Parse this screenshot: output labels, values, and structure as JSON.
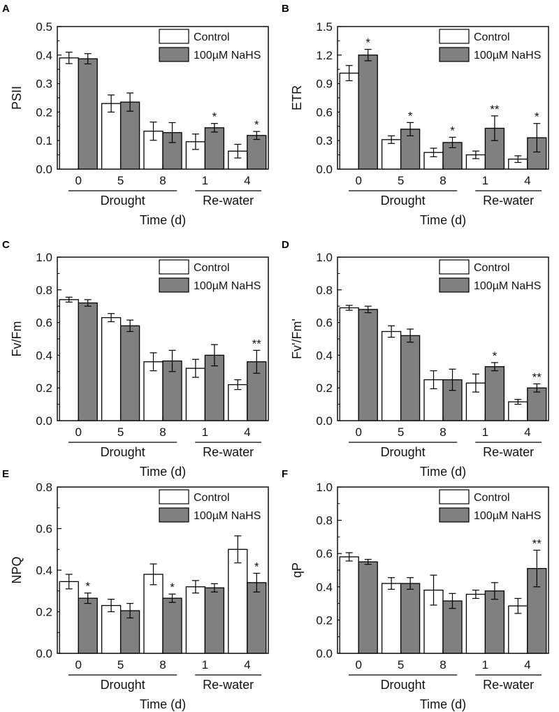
{
  "chart_data": [
    {
      "type": "bar",
      "panel": "A",
      "ylabel": "PSII",
      "xlabel": "Time (d)",
      "ylim": [
        0,
        0.5
      ],
      "yticks": [
        "0.0",
        "0.1",
        "0.2",
        "0.3",
        "0.4",
        "0.5"
      ],
      "categories": [
        "0",
        "5",
        "8",
        "1",
        "4"
      ],
      "groups": [
        {
          "name": "Drought",
          "categories": [
            "0",
            "5",
            "8"
          ]
        },
        {
          "name": "Re-water",
          "categories": [
            "1",
            "4"
          ]
        }
      ],
      "series": [
        {
          "name": "Control",
          "color": "#ffffff",
          "values": [
            0.39,
            0.23,
            0.133,
            0.096,
            0.063
          ],
          "errors": [
            0.02,
            0.03,
            0.032,
            0.027,
            0.024
          ],
          "sig": [
            "",
            "",
            "",
            "",
            ""
          ]
        },
        {
          "name": "100µM NaHS",
          "color": "#808080",
          "values": [
            0.387,
            0.235,
            0.128,
            0.145,
            0.118
          ],
          "errors": [
            0.018,
            0.032,
            0.035,
            0.015,
            0.014
          ],
          "sig": [
            "",
            "",
            "",
            "*",
            "*"
          ]
        }
      ]
    },
    {
      "type": "bar",
      "panel": "B",
      "ylabel": "ETR",
      "xlabel": "Time (d)",
      "ylim": [
        0,
        1.5
      ],
      "yticks": [
        "0.0",
        "0.3",
        "0.6",
        "0.9",
        "1.2",
        "1.5"
      ],
      "categories": [
        "0",
        "5",
        "8",
        "1",
        "4"
      ],
      "groups": [
        {
          "name": "Drought",
          "categories": [
            "0",
            "5",
            "8"
          ]
        },
        {
          "name": "Re-water",
          "categories": [
            "1",
            "4"
          ]
        }
      ],
      "series": [
        {
          "name": "Control",
          "color": "#ffffff",
          "values": [
            1.01,
            0.31,
            0.175,
            0.15,
            0.105
          ],
          "errors": [
            0.08,
            0.04,
            0.045,
            0.04,
            0.035
          ],
          "sig": [
            "",
            "",
            "",
            "",
            ""
          ]
        },
        {
          "name": "100µM NaHS",
          "color": "#808080",
          "values": [
            1.2,
            0.42,
            0.28,
            0.43,
            0.33
          ],
          "errors": [
            0.06,
            0.07,
            0.055,
            0.13,
            0.15
          ],
          "sig": [
            "*",
            "*",
            "*",
            "**",
            "*"
          ]
        }
      ]
    },
    {
      "type": "bar",
      "panel": "C",
      "ylabel": "Fv/Fm",
      "xlabel": "Time (d)",
      "ylim": [
        0,
        1.0
      ],
      "yticks": [
        "0.0",
        "0.2",
        "0.4",
        "0.6",
        "0.8",
        "1.0"
      ],
      "categories": [
        "0",
        "5",
        "8",
        "1",
        "4"
      ],
      "groups": [
        {
          "name": "Drought",
          "categories": [
            "0",
            "5",
            "8"
          ]
        },
        {
          "name": "Re-water",
          "categories": [
            "1",
            "4"
          ]
        }
      ],
      "series": [
        {
          "name": "Control",
          "color": "#ffffff",
          "values": [
            0.74,
            0.63,
            0.36,
            0.32,
            0.22
          ],
          "errors": [
            0.015,
            0.025,
            0.055,
            0.055,
            0.03
          ],
          "sig": [
            "",
            "",
            "",
            "",
            ""
          ]
        },
        {
          "name": "100µM NaHS",
          "color": "#808080",
          "values": [
            0.72,
            0.58,
            0.365,
            0.4,
            0.36
          ],
          "errors": [
            0.02,
            0.035,
            0.065,
            0.065,
            0.07
          ],
          "sig": [
            "",
            "",
            "",
            "",
            "**"
          ]
        }
      ]
    },
    {
      "type": "bar",
      "panel": "D",
      "ylabel": "Fv'/Fm'",
      "xlabel": "Time (d)",
      "ylim": [
        0,
        1.0
      ],
      "yticks": [
        "0.0",
        "0.2",
        "0.4",
        "0.6",
        "0.8",
        "1.0"
      ],
      "categories": [
        "0",
        "5",
        "8",
        "1",
        "4"
      ],
      "groups": [
        {
          "name": "Drought",
          "categories": [
            "0",
            "5",
            "8"
          ]
        },
        {
          "name": "Re-water",
          "categories": [
            "1",
            "4"
          ]
        }
      ],
      "series": [
        {
          "name": "Control",
          "color": "#ffffff",
          "values": [
            0.69,
            0.545,
            0.25,
            0.23,
            0.115
          ],
          "errors": [
            0.015,
            0.035,
            0.055,
            0.055,
            0.015
          ],
          "sig": [
            "",
            "",
            "",
            "",
            ""
          ]
        },
        {
          "name": "100µM NaHS",
          "color": "#808080",
          "values": [
            0.68,
            0.52,
            0.25,
            0.33,
            0.2
          ],
          "errors": [
            0.02,
            0.04,
            0.065,
            0.025,
            0.025
          ],
          "sig": [
            "",
            "",
            "",
            "*",
            "**"
          ]
        }
      ]
    },
    {
      "type": "bar",
      "panel": "E",
      "ylabel": "NPQ",
      "xlabel": "Time (d)",
      "ylim": [
        0,
        0.8
      ],
      "yticks": [
        "0.0",
        "0.2",
        "0.4",
        "0.6",
        "0.8"
      ],
      "categories": [
        "0",
        "5",
        "8",
        "1",
        "4"
      ],
      "groups": [
        {
          "name": "Drought",
          "categories": [
            "0",
            "5",
            "8"
          ]
        },
        {
          "name": "Re-water",
          "categories": [
            "1",
            "4"
          ]
        }
      ],
      "series": [
        {
          "name": "Control",
          "color": "#ffffff",
          "values": [
            0.345,
            0.23,
            0.38,
            0.32,
            0.5
          ],
          "errors": [
            0.035,
            0.03,
            0.05,
            0.03,
            0.065
          ],
          "sig": [
            "",
            "",
            "",
            "",
            ""
          ]
        },
        {
          "name": "100µM NaHS",
          "color": "#808080",
          "values": [
            0.265,
            0.205,
            0.265,
            0.315,
            0.34
          ],
          "errors": [
            0.025,
            0.035,
            0.02,
            0.02,
            0.045
          ],
          "sig": [
            "*",
            "",
            "*",
            "",
            "*"
          ]
        }
      ]
    },
    {
      "type": "bar",
      "panel": "F",
      "ylabel": "qP",
      "xlabel": "Time (d)",
      "ylim": [
        0,
        1.0
      ],
      "yticks": [
        "0.0",
        "0.2",
        "0.4",
        "0.6",
        "0.8",
        "1.0"
      ],
      "categories": [
        "0",
        "5",
        "8",
        "1",
        "4"
      ],
      "groups": [
        {
          "name": "Drought",
          "categories": [
            "0",
            "5",
            "8"
          ]
        },
        {
          "name": "Re-water",
          "categories": [
            "1",
            "4"
          ]
        }
      ],
      "series": [
        {
          "name": "Control",
          "color": "#ffffff",
          "values": [
            0.58,
            0.42,
            0.38,
            0.355,
            0.285
          ],
          "errors": [
            0.025,
            0.035,
            0.09,
            0.025,
            0.045
          ],
          "sig": [
            "",
            "",
            "",
            "",
            ""
          ]
        },
        {
          "name": "100µM NaHS",
          "color": "#808080",
          "values": [
            0.55,
            0.42,
            0.315,
            0.375,
            0.51
          ],
          "errors": [
            0.015,
            0.035,
            0.045,
            0.05,
            0.11
          ],
          "sig": [
            "",
            "",
            "",
            "",
            "**"
          ]
        }
      ]
    }
  ]
}
